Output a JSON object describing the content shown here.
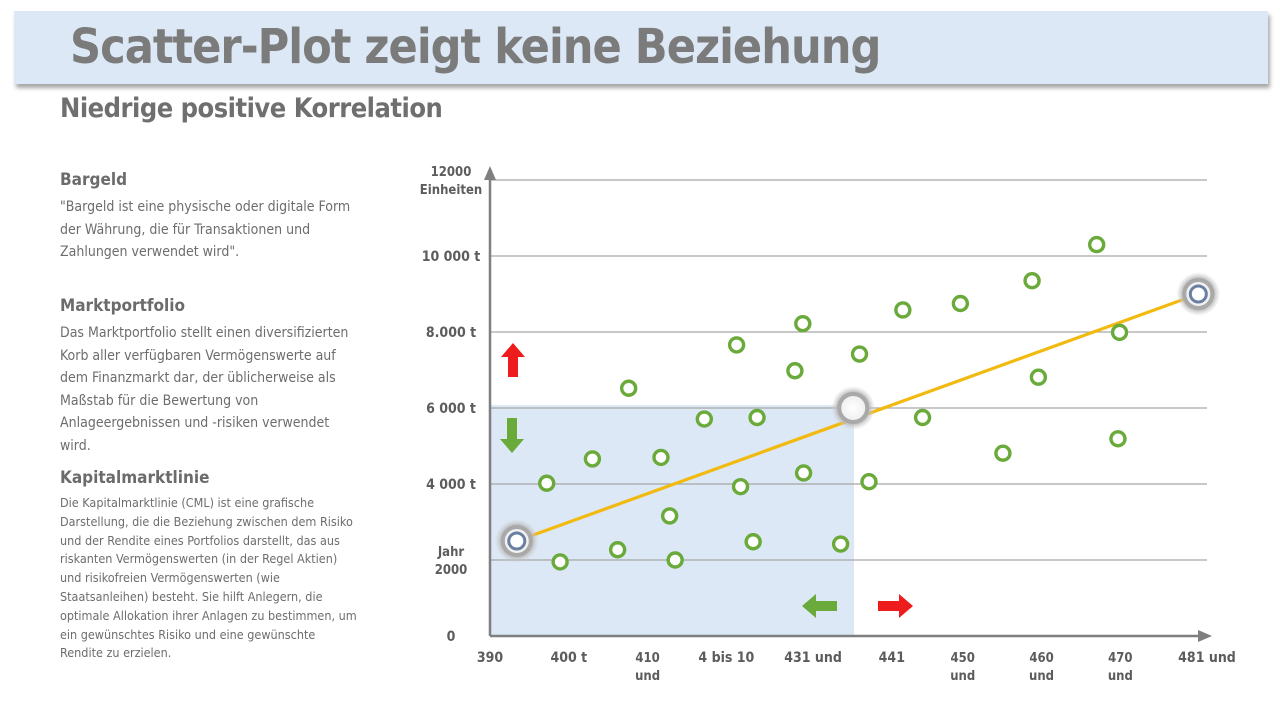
{
  "header": {
    "title": "Scatter-Plot zeigt keine Beziehung",
    "subtitle": "Niedrige positive Korrelation"
  },
  "sections": [
    {
      "heading": "Bargeld",
      "body": "\"Bargeld ist eine physische oder digitale Form der Währung, die für Transaktionen und Zahlungen verwendet wird\"."
    },
    {
      "heading": "Marktportfolio",
      "body": "Das Marktportfolio stellt einen diversifizierten Korb aller verfügbaren Vermögenswerte auf dem Finanzmarkt dar, der üblicherweise als Maßstab für die Bewertung von Anlageergebnissen und -risiken verwendet wird."
    },
    {
      "heading": "Kapitalmarktlinie",
      "body": "Die Kapitalmarktlinie (CML) ist eine grafische Darstellung, die die Beziehung zwischen dem Risiko und der Rendite eines Portfolios darstellt, das aus riskanten Vermögenswerten (in der Regel Aktien) und risikofreien Vermögenswerten (wie Staatsanleihen) besteht. Sie hilft Anlegern, die optimale Allokation ihrer Anlagen zu bestimmen, um ein gewünschtes Risiko und eine gewünschte Rendite zu erzielen."
    }
  ],
  "colors": {
    "point": "#6aaa3a",
    "trend": "#f2b90f",
    "highlight_region": "#dce8f5",
    "arrow_up": "#ee1c1c",
    "arrow_right": "#ee1c1c",
    "arrow_down": "#6aaa3a",
    "arrow_left": "#6aaa3a",
    "grid": "#a6a6a6"
  },
  "chart_data": {
    "type": "scatter",
    "title": "",
    "y_tick_labels": [
      {
        "value": 0,
        "lines": [
          "0"
        ]
      },
      {
        "value": 2000,
        "lines": [
          "Jahr",
          "2000"
        ]
      },
      {
        "value": 4000,
        "lines": [
          "4 000 t"
        ]
      },
      {
        "value": 6000,
        "lines": [
          "6 000 t"
        ]
      },
      {
        "value": 8000,
        "lines": [
          "8.000 t"
        ]
      },
      {
        "value": 10000,
        "lines": [
          "10 000 t"
        ]
      },
      {
        "value": 12000,
        "lines": [
          "12000",
          "Einheiten"
        ]
      }
    ],
    "x_tick_labels": [
      {
        "value": 390,
        "lines": [
          "390"
        ]
      },
      {
        "value": 400,
        "lines": [
          "400 t"
        ]
      },
      {
        "value": 410,
        "lines": [
          "410",
          "und"
        ]
      },
      {
        "value": 420,
        "lines": [
          "4 bis 10"
        ]
      },
      {
        "value": 431,
        "lines": [
          "431 und"
        ]
      },
      {
        "value": 441,
        "lines": [
          "441"
        ]
      },
      {
        "value": 450,
        "lines": [
          "450",
          "und"
        ]
      },
      {
        "value": 460,
        "lines": [
          "460",
          "und"
        ]
      },
      {
        "value": 470,
        "lines": [
          "470",
          "und"
        ]
      },
      {
        "value": 481,
        "lines": [
          "481 und"
        ]
      }
    ],
    "xlim": [
      390,
      481
    ],
    "ylim": [
      0,
      12000
    ],
    "grid": true,
    "points": [
      {
        "x": 397.2,
        "y": 4020
      },
      {
        "x": 398.9,
        "y": 1950
      },
      {
        "x": 403.0,
        "y": 4660
      },
      {
        "x": 406.2,
        "y": 2270
      },
      {
        "x": 407.6,
        "y": 6520
      },
      {
        "x": 411.7,
        "y": 4700
      },
      {
        "x": 412.8,
        "y": 3160
      },
      {
        "x": 413.5,
        "y": 2000
      },
      {
        "x": 417.2,
        "y": 5710
      },
      {
        "x": 421.3,
        "y": 7660
      },
      {
        "x": 421.8,
        "y": 3930
      },
      {
        "x": 423.4,
        "y": 2480
      },
      {
        "x": 423.9,
        "y": 5750
      },
      {
        "x": 428.7,
        "y": 6980
      },
      {
        "x": 429.7,
        "y": 8220
      },
      {
        "x": 429.8,
        "y": 4290
      },
      {
        "x": 434.5,
        "y": 2420
      },
      {
        "x": 436.9,
        "y": 7420
      },
      {
        "x": 438.1,
        "y": 4060
      },
      {
        "x": 442.4,
        "y": 8580
      },
      {
        "x": 444.9,
        "y": 5750
      },
      {
        "x": 449.7,
        "y": 8750
      },
      {
        "x": 455.1,
        "y": 4810
      },
      {
        "x": 458.8,
        "y": 9350
      },
      {
        "x": 459.6,
        "y": 6810
      },
      {
        "x": 467.0,
        "y": 10300
      },
      {
        "x": 469.7,
        "y": 5190
      },
      {
        "x": 469.9,
        "y": 7990
      }
    ],
    "trendline": {
      "from": {
        "x": 393.4,
        "y": 2500
      },
      "to": {
        "x": 479.9,
        "y": 9000
      }
    },
    "highlighted_points": [
      {
        "x": 393.4,
        "y": 2500
      },
      {
        "x": 436.1,
        "y": 6000
      },
      {
        "x": 479.9,
        "y": 9000
      }
    ],
    "shaded_region": {
      "x": [
        390,
        436.2
      ],
      "y": [
        0,
        6080
      ]
    }
  }
}
